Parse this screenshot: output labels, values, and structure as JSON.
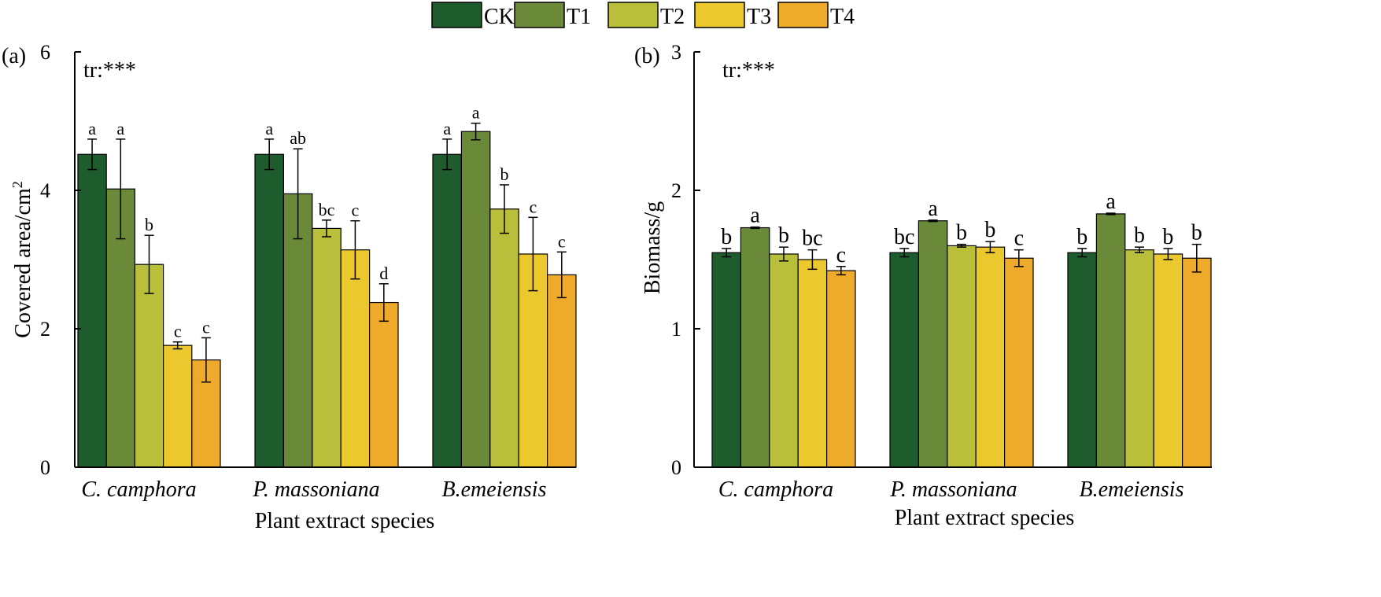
{
  "colors": {
    "CK": "#1e5c2e",
    "T1": "#6a8a3a",
    "T2": "#b9bf3b",
    "T3": "#ebc82e",
    "T4": "#eeaa2a"
  },
  "legend": [
    "CK",
    "T1",
    "T2",
    "T3",
    "T4"
  ],
  "chart_data": [
    {
      "type": "bar",
      "panel_label": "(a)",
      "annotation": "tr:***",
      "title": "",
      "xlabel": "Plant extract species",
      "ylabel_base": "Covered area/cm",
      "ylabel_sup": "2",
      "ylim": [
        0,
        6
      ],
      "yticks": [
        0,
        2,
        4,
        6
      ],
      "categories": [
        "C. camphora",
        "P. massoniana",
        "B.emeiensis"
      ],
      "series": [
        {
          "name": "CK",
          "values": [
            4.52,
            4.52,
            4.52
          ],
          "errors": [
            0.22,
            0.22,
            0.22
          ],
          "letters": [
            "a",
            "a",
            "a"
          ]
        },
        {
          "name": "T1",
          "values": [
            4.02,
            3.95,
            4.85
          ],
          "errors": [
            0.72,
            0.65,
            0.12
          ],
          "letters": [
            "a",
            "ab",
            "a"
          ]
        },
        {
          "name": "T2",
          "values": [
            2.93,
            3.45,
            3.73
          ],
          "errors": [
            0.42,
            0.12,
            0.35
          ],
          "letters": [
            "b",
            "bc",
            "b"
          ]
        },
        {
          "name": "T3",
          "values": [
            1.76,
            3.14,
            3.08
          ],
          "errors": [
            0.05,
            0.42,
            0.53
          ],
          "letters": [
            "c",
            "c",
            "c"
          ]
        },
        {
          "name": "T4",
          "values": [
            1.55,
            2.38,
            2.78
          ],
          "errors": [
            0.32,
            0.27,
            0.33
          ],
          "letters": [
            "c",
            "d",
            "c"
          ]
        }
      ]
    },
    {
      "type": "bar",
      "panel_label": "(b)",
      "annotation": "tr:***",
      "title": "",
      "xlabel": "Plant extract species",
      "ylabel_base": "Biomass/g",
      "ylabel_sup": "",
      "ylim": [
        0,
        3
      ],
      "yticks": [
        0,
        1,
        2,
        3
      ],
      "categories": [
        "C. camphora",
        "P. massoniana",
        "B.emeiensis"
      ],
      "series": [
        {
          "name": "CK",
          "values": [
            1.55,
            1.55,
            1.55
          ],
          "errors": [
            0.03,
            0.03,
            0.03
          ],
          "letters": [
            "b",
            "bc",
            "b"
          ]
        },
        {
          "name": "T1",
          "values": [
            1.73,
            1.78,
            1.83
          ],
          "errors": [
            0.005,
            0.005,
            0.005
          ],
          "letters": [
            "a",
            "a",
            "a"
          ]
        },
        {
          "name": "T2",
          "values": [
            1.54,
            1.6,
            1.57
          ],
          "errors": [
            0.05,
            0.01,
            0.02
          ],
          "letters": [
            "b",
            "b",
            "b"
          ]
        },
        {
          "name": "T3",
          "values": [
            1.5,
            1.59,
            1.54
          ],
          "errors": [
            0.07,
            0.04,
            0.04
          ],
          "letters": [
            "bc",
            "b",
            "b"
          ]
        },
        {
          "name": "T4",
          "values": [
            1.42,
            1.51,
            1.51
          ],
          "errors": [
            0.03,
            0.06,
            0.1
          ],
          "letters": [
            "c",
            "c",
            "b"
          ]
        }
      ]
    }
  ]
}
